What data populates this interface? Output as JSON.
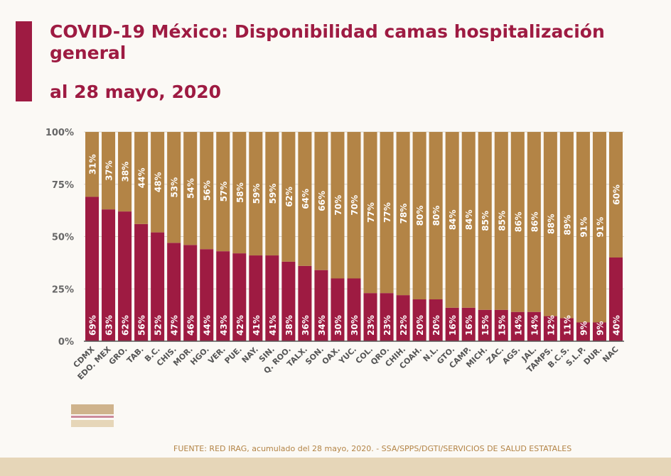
{
  "title": "COVID-19 México: Disponibilidad camas hospitalización general",
  "subtitle": "al 28 mayo, 2020",
  "source": "FUENTE: RED IRAG, acumulado del 28 mayo, 2020. -   SSA/SPPS/DGTI/SERVICIOS DE SALUD ESTATALES",
  "colors": {
    "occupied": "#9e1b42",
    "available": "#b38446",
    "title": "#9e1b42"
  },
  "chart_data": {
    "type": "bar",
    "stacked": true,
    "title": "COVID-19 México: Disponibilidad camas hospitalización general",
    "ylim": [
      0,
      100
    ],
    "yticks": [
      "0%",
      "25%",
      "50%",
      "75%",
      "100%"
    ],
    "grid": true,
    "categories": [
      "CDMX",
      "EDO. MEX",
      "GRO.",
      "TAB.",
      "B.C.",
      "CHIS.",
      "MOR.",
      "HGO.",
      "VER.",
      "PUE.",
      "NAY.",
      "SIN.",
      "Q. ROO.",
      "TALX.",
      "SON.",
      "OAX.",
      "YUC.",
      "COL.",
      "QRO.",
      "CHIH.",
      "COAH.",
      "N.L.",
      "GTO.",
      "CAMP.",
      "MICH.",
      "ZAC.",
      "AGS.",
      "JAL.",
      "TAMPS.",
      "B.C.S.",
      "S.L.P.",
      "DUR.",
      "NAC"
    ],
    "series": [
      {
        "values": [
          69,
          63,
          62,
          56,
          52,
          47,
          46,
          44,
          43,
          42,
          41,
          41,
          38,
          36,
          34,
          30,
          30,
          23,
          23,
          22,
          20,
          20,
          16,
          16,
          15,
          15,
          14,
          14,
          12,
          11,
          9,
          9,
          40
        ],
        "color": "#9e1b42"
      },
      {
        "values": [
          31,
          37,
          38,
          44,
          48,
          53,
          54,
          56,
          57,
          58,
          59,
          59,
          62,
          64,
          66,
          70,
          70,
          77,
          77,
          78,
          80,
          80,
          84,
          84,
          85,
          85,
          86,
          86,
          88,
          89,
          91,
          91,
          60
        ],
        "color": "#b38446"
      }
    ]
  }
}
